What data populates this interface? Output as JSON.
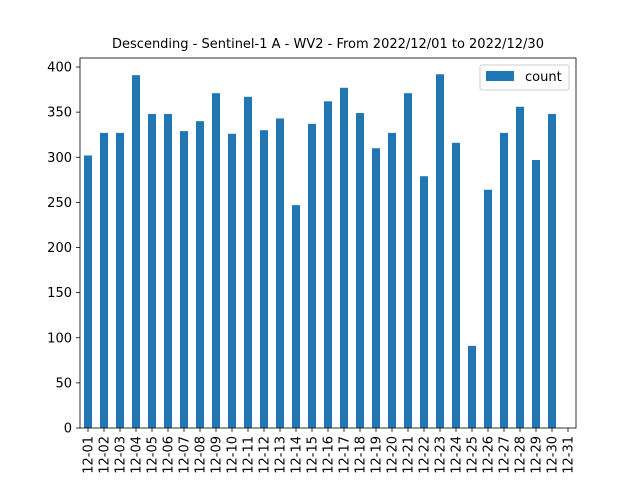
{
  "chart_data": {
    "type": "bar",
    "title": "Descending - Sentinel-1 A - WV2 - From 2022/12/01 to 2022/12/30",
    "xlabel": "",
    "ylabel": "",
    "categories": [
      "12-01",
      "12-02",
      "12-03",
      "12-04",
      "12-05",
      "12-06",
      "12-07",
      "12-08",
      "12-09",
      "12-10",
      "12-11",
      "12-12",
      "12-13",
      "12-14",
      "12-15",
      "12-16",
      "12-17",
      "12-18",
      "12-19",
      "12-20",
      "12-21",
      "12-22",
      "12-23",
      "12-24",
      "12-25",
      "12-26",
      "12-27",
      "12-28",
      "12-29",
      "12-30",
      "12-31"
    ],
    "series": [
      {
        "name": "count",
        "color": "#1f77b4",
        "values": [
          302,
          327,
          327,
          391,
          348,
          348,
          329,
          340,
          371,
          326,
          367,
          330,
          343,
          247,
          337,
          362,
          377,
          349,
          310,
          327,
          371,
          279,
          392,
          316,
          91,
          264,
          327,
          356,
          297,
          348,
          0
        ]
      }
    ],
    "ylim": [
      0,
      410
    ],
    "yticks": [
      0,
      50,
      100,
      150,
      200,
      250,
      300,
      350,
      400
    ],
    "grid": false,
    "legend": "top-right"
  }
}
